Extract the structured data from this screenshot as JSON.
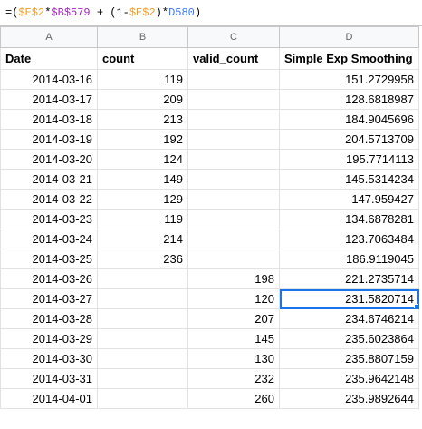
{
  "formula_bar": {
    "tokens": [
      {
        "text": "=(",
        "color": "#000000"
      },
      {
        "text": "$E$2",
        "color": "#e8a02e"
      },
      {
        "text": "*",
        "color": "#000000"
      },
      {
        "text": "$B$579",
        "color": "#9c27b0"
      },
      {
        "text": " + (1-",
        "color": "#000000"
      },
      {
        "text": "$E$2",
        "color": "#e8a02e"
      },
      {
        "text": ")*",
        "color": "#000000"
      },
      {
        "text": "D580",
        "color": "#3b78e7"
      },
      {
        "text": ")",
        "color": "#000000"
      }
    ]
  },
  "sheet": {
    "column_letters": [
      "A",
      "B",
      "C",
      "D"
    ],
    "header": [
      "Date",
      "count",
      "valid_count",
      "Simple Exp Smoothing"
    ],
    "selected_cell": [
      11,
      3
    ],
    "rows": [
      [
        "2014-03-16",
        "119",
        null,
        "151.2729958"
      ],
      [
        "2014-03-17",
        "209",
        null,
        "128.6818987"
      ],
      [
        "2014-03-18",
        "213",
        null,
        "184.9045696"
      ],
      [
        "2014-03-19",
        "192",
        null,
        "204.5713709"
      ],
      [
        "2014-03-20",
        "124",
        null,
        "195.7714113"
      ],
      [
        "2014-03-21",
        "149",
        null,
        "145.5314234"
      ],
      [
        "2014-03-22",
        "129",
        null,
        "147.959427"
      ],
      [
        "2014-03-23",
        "119",
        null,
        "134.6878281"
      ],
      [
        "2014-03-24",
        "214",
        null,
        "123.7063484"
      ],
      [
        "2014-03-25",
        "236",
        null,
        "186.9119045"
      ],
      [
        "2014-03-26",
        null,
        "198",
        "221.2735714"
      ],
      [
        "2014-03-27",
        null,
        "120",
        "231.5820714"
      ],
      [
        "2014-03-28",
        null,
        "207",
        "234.6746214"
      ],
      [
        "2014-03-29",
        null,
        "145",
        "235.6023864"
      ],
      [
        "2014-03-30",
        null,
        "130",
        "235.8807159"
      ],
      [
        "2014-03-31",
        null,
        "232",
        "235.9642148"
      ],
      [
        "2014-04-01",
        null,
        "260",
        "235.9892644"
      ]
    ]
  }
}
